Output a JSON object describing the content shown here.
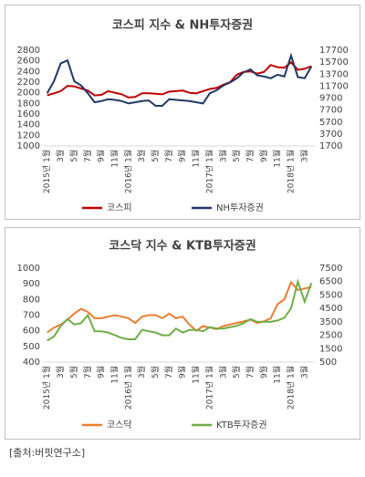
{
  "chart_data": [
    {
      "type": "line",
      "title": "코스피 지수 & NH투자증권",
      "categories": [
        "2015년 1월",
        null,
        "3월",
        null,
        "5월",
        null,
        "7월",
        null,
        "9월",
        null,
        "11월",
        null,
        "2016년 1월",
        null,
        "3월",
        null,
        "5월",
        null,
        "7월",
        null,
        "9월",
        null,
        "11월",
        null,
        "2017년 1월",
        null,
        "3월",
        null,
        "5월",
        null,
        "7월",
        null,
        "9월",
        null,
        "11월",
        null,
        "2018년 1월",
        null,
        "3월",
        null
      ],
      "series": [
        {
          "name": "코스피",
          "color": "#c00000",
          "axis": "y",
          "values": [
            1950,
            1990,
            2030,
            2130,
            2120,
            2080,
            2040,
            1950,
            1960,
            2030,
            2000,
            1970,
            1910,
            1920,
            1990,
            1990,
            1980,
            1970,
            2020,
            2030,
            2040,
            2000,
            1990,
            2030,
            2070,
            2090,
            2150,
            2200,
            2340,
            2390,
            2400,
            2360,
            2390,
            2520,
            2480,
            2470,
            2570,
            2430,
            2450,
            2500
          ]
        },
        {
          "name": "NH투자증권",
          "color": "#203864",
          "axis": "y2",
          "values": [
            10500,
            12500,
            15500,
            16000,
            12500,
            11800,
            10500,
            9000,
            9200,
            9500,
            9400,
            9200,
            8800,
            9000,
            9200,
            9300,
            8400,
            8400,
            9500,
            9400,
            9300,
            9200,
            9000,
            8800,
            10500,
            11000,
            11800,
            12300,
            13000,
            14000,
            14500,
            13500,
            13300,
            13000,
            13600,
            13300,
            16800,
            13200,
            13000,
            15000
          ]
        }
      ],
      "ylim": [
        1000,
        2800
      ],
      "yticks": [
        1000,
        1200,
        1400,
        1600,
        1800,
        2000,
        2200,
        2400,
        2600,
        2800
      ],
      "y2lim": [
        1700,
        17700
      ],
      "y2ticks": [
        1700,
        3700,
        5700,
        7700,
        9700,
        11700,
        13700,
        15700,
        17700
      ],
      "legend": "bottom"
    },
    {
      "type": "line",
      "title": "코스닥 지수 & KTB투자증권",
      "categories": [
        "2015년 1월",
        null,
        "3월",
        null,
        "5월",
        null,
        "7월",
        null,
        "9월",
        null,
        "11월",
        null,
        "2016년 1월",
        null,
        "3월",
        null,
        "5월",
        null,
        "7월",
        null,
        "9월",
        null,
        "11월",
        null,
        "2017년 1월",
        null,
        "3월",
        null,
        "5월",
        null,
        "7월",
        null,
        "9월",
        null,
        "11월",
        null,
        "2018년 1월",
        null,
        "3월",
        null
      ],
      "series": [
        {
          "name": "코스닥",
          "color": "#ed7d31",
          "axis": "y",
          "values": [
            590,
            620,
            640,
            670,
            710,
            740,
            720,
            680,
            680,
            690,
            700,
            690,
            680,
            650,
            690,
            700,
            700,
            680,
            710,
            680,
            690,
            640,
            600,
            630,
            620,
            610,
            630,
            640,
            650,
            660,
            670,
            650,
            660,
            680,
            770,
            800,
            910,
            860,
            870,
            880
          ]
        },
        {
          "name": "KTB투자증권",
          "color": "#70ad47",
          "axis": "y2",
          "values": [
            2100,
            2400,
            3200,
            3700,
            3300,
            3400,
            4000,
            2800,
            2800,
            2700,
            2500,
            2300,
            2200,
            2200,
            2900,
            2800,
            2700,
            2500,
            2500,
            3000,
            2700,
            2900,
            2900,
            2800,
            3100,
            3000,
            3000,
            3100,
            3200,
            3400,
            3700,
            3500,
            3500,
            3500,
            3600,
            3800,
            4500,
            6500,
            5000,
            6400
          ]
        }
      ],
      "ylim": [
        400,
        1000
      ],
      "yticks": [
        400,
        500,
        600,
        700,
        800,
        900,
        1000
      ],
      "y2lim": [
        500,
        7500
      ],
      "y2ticks": [
        500,
        1500,
        2500,
        3500,
        4500,
        5500,
        6500,
        7500
      ],
      "legend": "bottom"
    }
  ],
  "source": "[출처:버핏연구소]"
}
